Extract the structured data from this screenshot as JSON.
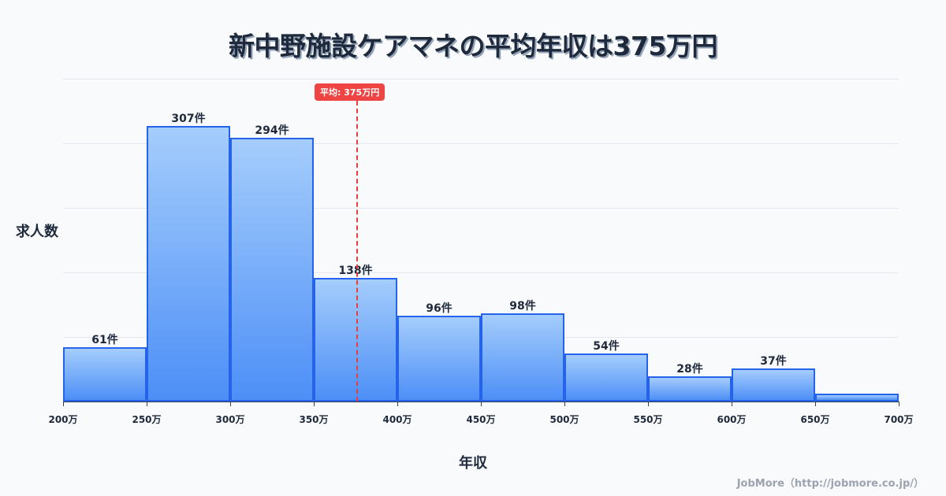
{
  "title": "新中野施設ケアマネの平均年収は375万円",
  "mean_badge": "平均: 375万円",
  "xlabel": "年収",
  "ylabel": "求人数",
  "credit": "JobMore（http://jobmore.co.jp/）",
  "colors": {
    "bar_fill_top": "#a5cdfc",
    "bar_fill_bottom": "#4d8ff7",
    "bar_border": "#2563eb",
    "mean_line": "#e53e3e",
    "text": "#1e293b"
  },
  "chart_data": {
    "type": "bar",
    "title": "新中野施設ケアマネの平均年収は375万円",
    "xlabel": "年収",
    "ylabel": "求人数",
    "x_ticks": [
      "200万",
      "250万",
      "300万",
      "350万",
      "400万",
      "450万",
      "500万",
      "550万",
      "600万",
      "650万",
      "700万"
    ],
    "categories": [
      "200-250万",
      "250-300万",
      "300-350万",
      "350-400万",
      "400-450万",
      "450-500万",
      "500-550万",
      "550-600万",
      "600-650万",
      "650-700万"
    ],
    "values": [
      61,
      307,
      294,
      138,
      96,
      98,
      54,
      28,
      37,
      9
    ],
    "labels": [
      "61件",
      "307件",
      "294件",
      "138件",
      "96件",
      "98件",
      "54件",
      "28件",
      "37件",
      ""
    ],
    "ylim": [
      0,
      360
    ],
    "grid": true,
    "mean": 375,
    "mean_label": "平均: 375万円"
  }
}
